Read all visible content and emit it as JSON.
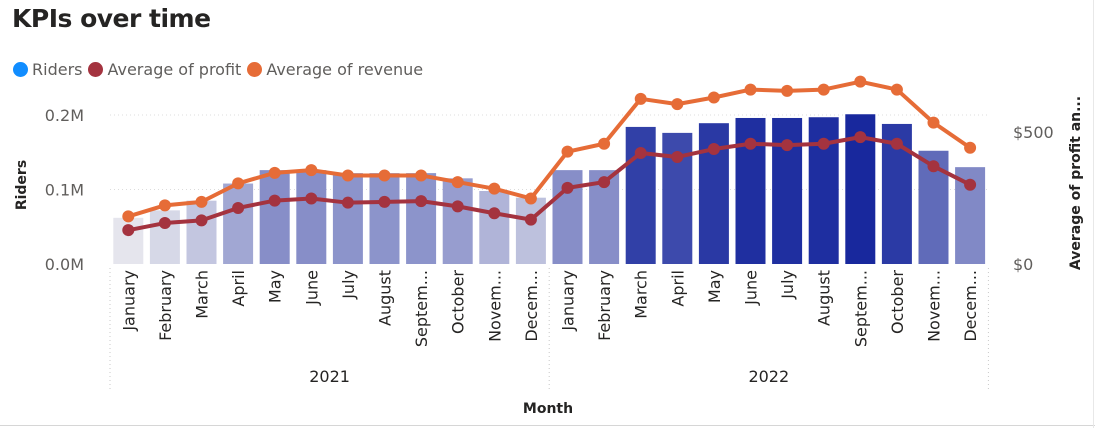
{
  "title": "KPIs over time",
  "legend": [
    {
      "label": "Riders",
      "color": "#118dff"
    },
    {
      "label": "Average of profit",
      "color": "#a4333f"
    },
    {
      "label": "Average of revenue",
      "color": "#e66c37"
    }
  ],
  "chart_data": {
    "type": "bar",
    "title": "KPIs over time",
    "xlabel": "Month",
    "ylabel": "Riders",
    "y2label": "Average of profit an...",
    "ylim": [
      0,
      200000
    ],
    "y2lim": [
      0,
      700
    ],
    "y_ticks": [
      "0.0M",
      "0.1M",
      "0.2M"
    ],
    "y2_ticks": [
      "$0",
      "$500"
    ],
    "years": [
      "2021",
      "2022"
    ],
    "categories": [
      "January",
      "February",
      "March",
      "April",
      "May",
      "June",
      "July",
      "August",
      "Septem...",
      "October",
      "Novem...",
      "Decem...",
      "January",
      "February",
      "March",
      "April",
      "May",
      "June",
      "July",
      "August",
      "Septem...",
      "October",
      "Novem...",
      "Decem..."
    ],
    "series": [
      {
        "name": "Riders",
        "axis": "left",
        "kind": "bar",
        "values": [
          62000,
          72000,
          85000,
          108000,
          126000,
          126000,
          122000,
          122000,
          122000,
          115000,
          98000,
          89000,
          126000,
          126000,
          184000,
          176000,
          189000,
          196000,
          196000,
          197000,
          201000,
          188000,
          152000,
          130000
        ]
      },
      {
        "name": "Average of profit",
        "axis": "right",
        "kind": "line",
        "color": "#a4333f",
        "values": [
          128,
          155,
          165,
          212,
          240,
          248,
          232,
          235,
          238,
          218,
          192,
          168,
          288,
          310,
          420,
          405,
          435,
          455,
          450,
          455,
          480,
          455,
          370,
          300
        ]
      },
      {
        "name": "Average of revenue",
        "axis": "right",
        "kind": "line",
        "color": "#e66c37",
        "values": [
          180,
          222,
          235,
          305,
          345,
          355,
          335,
          335,
          335,
          310,
          285,
          248,
          425,
          455,
          625,
          605,
          630,
          660,
          655,
          660,
          690,
          660,
          535,
          440
        ]
      }
    ],
    "grid": true,
    "legend_position": "top-left"
  }
}
